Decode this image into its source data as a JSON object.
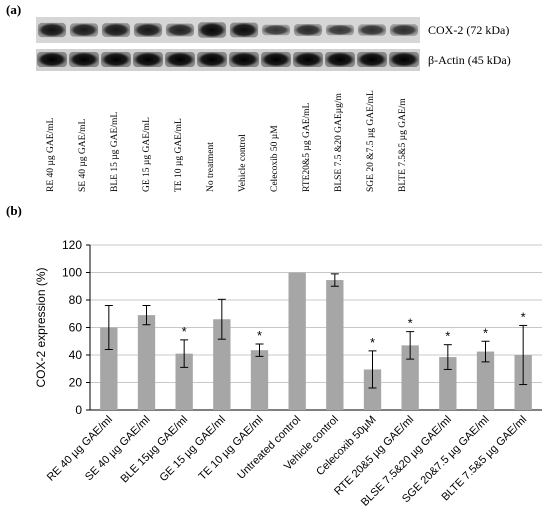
{
  "blot": {
    "panel_label": "(a)",
    "cox2_label": "COX-2 (72 kDa)",
    "actin_label": "β-Actin (45 kDa)",
    "lanes": [
      "RE 40 µg GAE/mL",
      "SE 40 µg GAE/mL",
      "BLE 15 µg GAE/mL",
      "GE 15 µg GAE/mL",
      "TE 10 µg GAE/mL",
      "No treatment",
      "Vehicle control",
      "Celecoxib 50 µM",
      "RTE20&5 µg GAE/mL",
      "BLSE 7.5 &20 GAEµg/m",
      "SGE 20 &7.5 µg GAE/mL",
      "BLTE 7.5&5 µg GAE/m"
    ],
    "cox2_intensity": [
      0.85,
      0.78,
      0.82,
      0.8,
      0.72,
      0.95,
      0.9,
      0.55,
      0.65,
      0.55,
      0.6,
      0.62
    ]
  },
  "chart_panel_label": "(b)",
  "chart_data": {
    "type": "bar",
    "ylabel": "COX-2 expression (%)",
    "xlabel": "",
    "ylim": [
      0,
      120
    ],
    "yticks": [
      0,
      20,
      40,
      60,
      80,
      100,
      120
    ],
    "grid": true,
    "bar_color": "#a6a6a6",
    "categories": [
      "RE 40 µg GAE/ml",
      "SE 40 µg GAE/ml",
      "BLE 15µg GAE/ml",
      "GE 15 µg GAE/ml",
      "TE 10 µg GAE/ml",
      "Untreated control",
      "Vehicle control",
      "Celecoxib 50µM",
      "RTE 20&5 µg GAE/ml",
      "BLSE 7.5&20 µg GAE/ml",
      "SGE 20&7.5 µg GAE/ml",
      "BLTE 7.5&5 µg GAE/ml"
    ],
    "values": [
      60,
      69,
      41,
      66,
      43.5,
      100,
      94.5,
      29.5,
      47,
      38.5,
      42.5,
      40
    ],
    "errors": [
      16,
      7,
      10,
      14.5,
      4.5,
      0,
      4.5,
      13.5,
      10,
      9,
      7.5,
      21.5
    ],
    "significance": [
      "",
      "",
      "*",
      "",
      "*",
      "",
      "",
      "*",
      "*",
      "*",
      "*",
      "*"
    ]
  }
}
